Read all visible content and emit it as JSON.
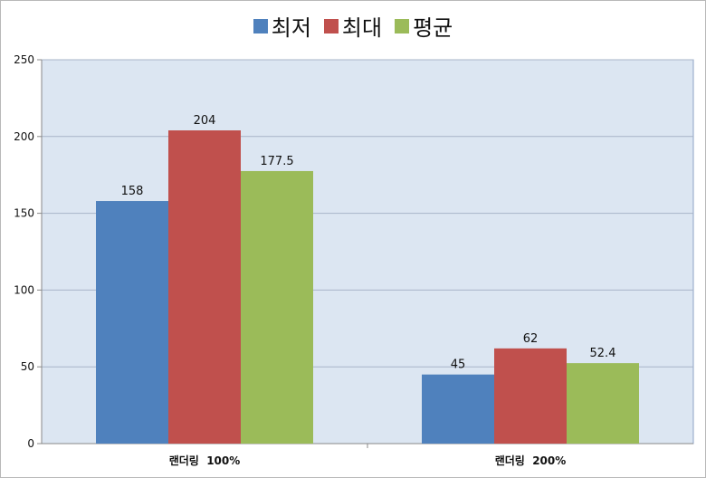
{
  "chart_data": {
    "type": "bar",
    "categories": [
      "랜더링  100%",
      "랜더링  200%"
    ],
    "series": [
      {
        "name": "최저",
        "values": [
          158,
          45
        ],
        "color": "#4f81bd"
      },
      {
        "name": "최대",
        "values": [
          204,
          62
        ],
        "color": "#c0504d"
      },
      {
        "name": "평균",
        "values": [
          177.5,
          52.4
        ],
        "color": "#9bbb59"
      }
    ],
    "ylim": [
      0,
      250
    ],
    "yticks": [
      "0",
      "50",
      "100",
      "150",
      "200",
      "250"
    ],
    "legend": "top-center",
    "grid": true,
    "plot_background": "#dce6f2"
  }
}
